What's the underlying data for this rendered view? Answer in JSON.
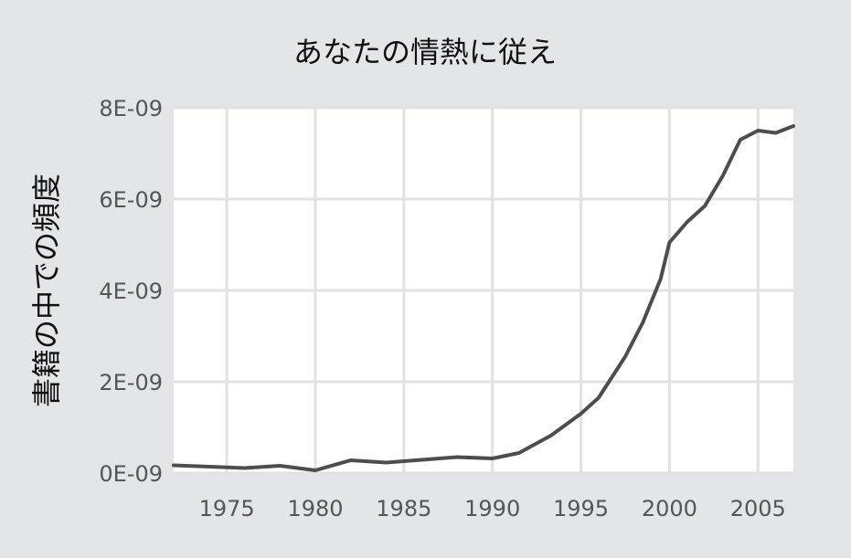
{
  "chart_data": {
    "type": "line",
    "title": "あなたの情熱に従え",
    "xlabel": "",
    "ylabel": "書籍の中での頻度",
    "xlim": [
      1972,
      2007
    ],
    "ylim": [
      0,
      8e-09
    ],
    "x_ticks": [
      1975,
      1980,
      1985,
      1990,
      1995,
      2000,
      2005
    ],
    "x_tick_labels": [
      "1975",
      "1980",
      "1985",
      "1990",
      "1995",
      "2000",
      "2005"
    ],
    "y_ticks": [
      0,
      2e-09,
      4e-09,
      6e-09,
      8e-09
    ],
    "y_tick_labels": [
      "0E-09",
      "2E-09",
      "4E-09",
      "6E-09",
      "8E-09"
    ],
    "grid": true,
    "legend": "none",
    "colors": {
      "background": "#e4e5e7",
      "plot_background": "#ffffff",
      "grid": "#e2e2e2",
      "line": "#4d4d4d"
    },
    "series": [
      {
        "x": [
          1972,
          1976,
          1978,
          1980,
          1982,
          1984,
          1986,
          1988,
          1990,
          1991.5,
          1993.3,
          1995,
          1996,
          1997.5,
          1998.5,
          1999.5,
          2000,
          2001,
          2002,
          2003,
          2004,
          2005,
          2006,
          2007
        ],
        "values": [
          1.7e-10,
          1.1e-10,
          1.6e-10,
          6e-11,
          2.8e-10,
          2.3e-10,
          2.9e-10,
          3.5e-10,
          3.2e-10,
          4.4e-10,
          8.2e-10,
          1.3e-09,
          1.65e-09,
          2.55e-09,
          3.3e-09,
          4.25e-09,
          5.05e-09,
          5.5e-09,
          5.85e-09,
          6.5e-09,
          7.3e-09,
          7.5e-09,
          7.45e-09,
          7.6e-09
        ]
      }
    ]
  }
}
